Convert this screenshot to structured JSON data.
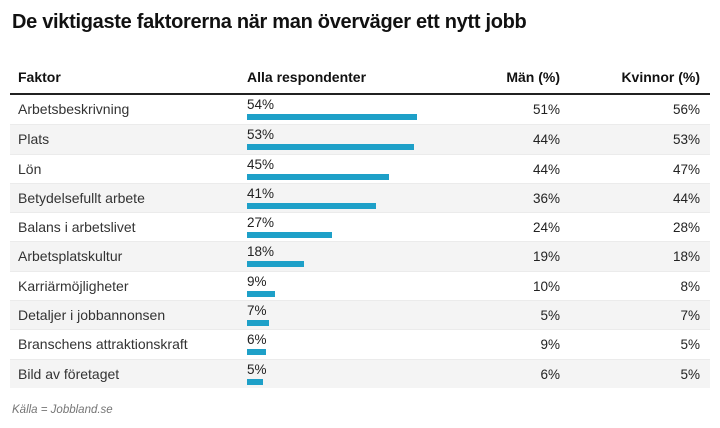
{
  "title": "De viktigaste faktorerna när man överväger ett nytt jobb",
  "source": "Källa = Jobbland.se",
  "colors": {
    "bar": "#1EA0C8",
    "header_rule": "#212121",
    "stripe": "#f4f4f4"
  },
  "table": {
    "headers": {
      "factor": "Faktor",
      "all": "Alla respondenter",
      "men": "Män (%)",
      "women": "Kvinnor (%)"
    }
  },
  "chart_data": {
    "type": "bar",
    "title": "De viktigaste faktorerna när man överväger ett nytt jobb",
    "categories": [
      "Arbetsbeskrivning",
      "Plats",
      "Lön",
      "Betydelsefullt arbete",
      "Balans i arbetslivet",
      "Arbetsplatskultur",
      "Karriärmöjligheter",
      "Detaljer i jobbannonsen",
      "Branschens attraktionskraft",
      "Bild av företaget"
    ],
    "series": [
      {
        "name": "Alla respondenter",
        "values": [
          54,
          53,
          45,
          41,
          27,
          18,
          9,
          7,
          6,
          5
        ]
      },
      {
        "name": "Män (%)",
        "values": [
          51,
          44,
          44,
          36,
          24,
          19,
          10,
          5,
          9,
          6
        ]
      },
      {
        "name": "Kvinnor (%)",
        "values": [
          56,
          53,
          47,
          44,
          28,
          18,
          8,
          7,
          5,
          5
        ]
      }
    ],
    "value_suffix": "%",
    "xlim": [
      0,
      60
    ],
    "legend_position": "none",
    "grid": false,
    "source": "Källa = Jobbland.se"
  }
}
